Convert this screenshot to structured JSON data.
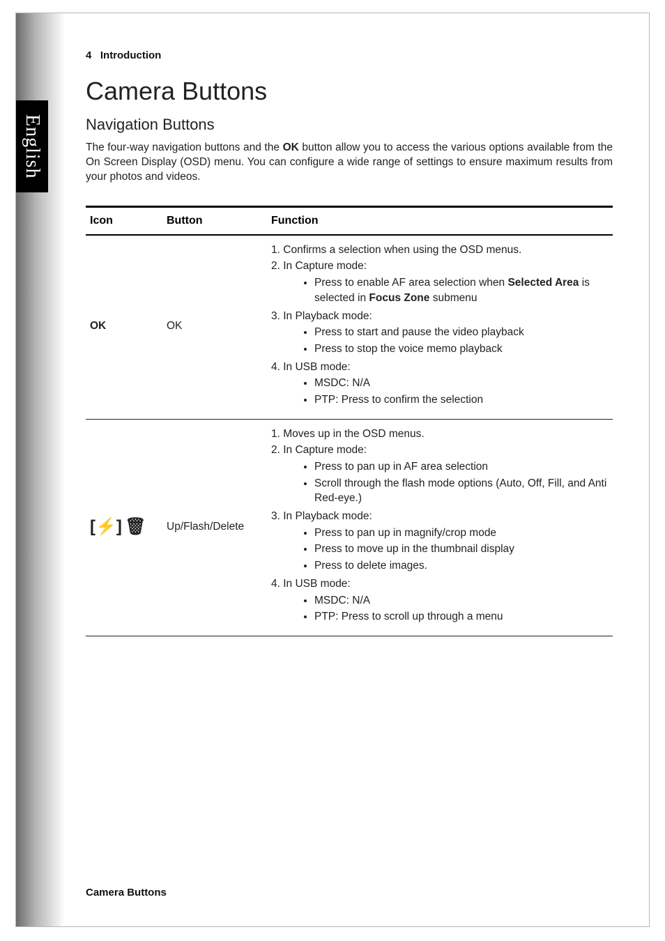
{
  "page": {
    "header_number": "4",
    "header_section": "Introduction",
    "title": "Camera Buttons",
    "subtitle": "Navigation Buttons",
    "intro_pre": "The four-way navigation buttons and the ",
    "intro_bold": "OK",
    "intro_post": " button allow you to access the various options available from the On Screen Display (OSD) menu. You can configure a wide range of settings to ensure maximum results from your photos and videos.",
    "footer": "Camera Buttons"
  },
  "side_tab": {
    "label": "English"
  },
  "table": {
    "headers": {
      "icon": "Icon",
      "button": "Button",
      "function": "Function"
    },
    "rows": [
      {
        "icon_text": "OK",
        "icon_is_text": true,
        "button_label": "OK",
        "fn": {
          "items": [
            {
              "num": "1.",
              "text": "Confirms a selection when using the OSD menus."
            },
            {
              "num": "2.",
              "text": "In Capture mode:",
              "bullets": [
                {
                  "pre": "Press to enable AF area selection when ",
                  "b1": "Selected Area",
                  "mid": " is selected in ",
                  "b2": "Focus Zone",
                  "post": " submenu"
                }
              ]
            },
            {
              "num": "3.",
              "text": "In Playback mode:",
              "bullets": [
                {
                  "text": "Press to start and pause the video playback"
                },
                {
                  "text": "Press to stop the voice memo playback"
                }
              ]
            },
            {
              "num": "4.",
              "text": "In USB mode:",
              "bullets": [
                {
                  "text": "MSDC: N/A"
                },
                {
                  "text": "PTP: Press to confirm the selection"
                }
              ]
            }
          ]
        }
      },
      {
        "icon_glyph_flash": "[⚡]",
        "icon_glyph_trash": "🗑",
        "icon_is_text": false,
        "button_label": "Up/Flash/Delete",
        "fn": {
          "items": [
            {
              "num": "1.",
              "text": "Moves up in the OSD menus."
            },
            {
              "num": "2.",
              "text": "In Capture mode:",
              "bullets": [
                {
                  "text": "Press to pan up in AF area selection"
                },
                {
                  "text": "Scroll through the flash mode options (Auto, Off, Fill, and Anti Red-eye.)"
                }
              ]
            },
            {
              "num": "3.",
              "text": "In Playback mode:",
              "bullets": [
                {
                  "text": "Press to pan up in magnify/crop mode"
                },
                {
                  "text": "Press to move up in the thumbnail display"
                },
                {
                  "text": "Press to delete images."
                }
              ]
            },
            {
              "num": "4.",
              "text": "In USB mode:",
              "bullets": [
                {
                  "text": "MSDC: N/A"
                },
                {
                  "text": "PTP: Press to scroll up through a menu"
                }
              ]
            }
          ]
        }
      }
    ]
  },
  "colors": {
    "text": "#222222",
    "border_thick": "#000000",
    "border_thin": "#222222",
    "side_tab_bg": "#000000",
    "side_tab_text": "#ffffff",
    "page_border": "#b8b8b8",
    "gradient_dark": "#6a6a6a"
  },
  "fonts": {
    "body_size_pt": 12,
    "title_size_pt": 27,
    "subtitle_size_pt": 17,
    "header_size_pt": 12
  }
}
